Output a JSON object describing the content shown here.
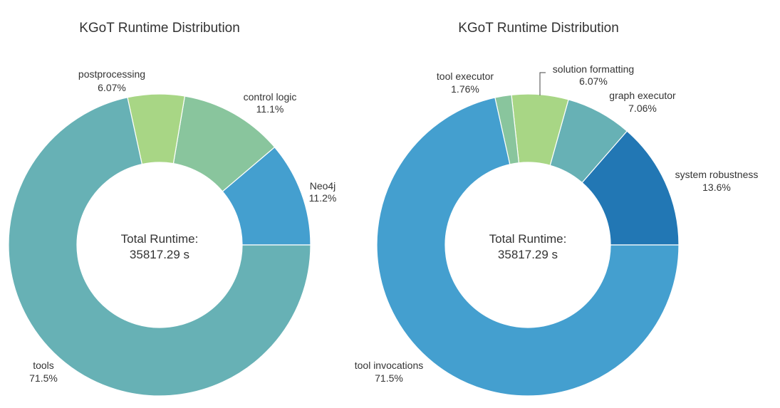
{
  "chart_data": [
    {
      "type": "pie",
      "title": "KGoT Runtime Distribution",
      "center_text": [
        "Total Runtime:",
        "35817.29 s"
      ],
      "slices": [
        {
          "label": "Neo4j",
          "percent_label": "11.2%",
          "value": 11.2,
          "color": "#449fcf"
        },
        {
          "label": "control logic",
          "percent_label": "11.1%",
          "value": 11.1,
          "color": "#89c59d"
        },
        {
          "label": "postprocessing",
          "percent_label": "6.07%",
          "value": 6.07,
          "color": "#a8d685"
        },
        {
          "label": "tools",
          "percent_label": "71.5%",
          "value": 71.5,
          "color": "#67b1b5"
        }
      ]
    },
    {
      "type": "pie",
      "title": "KGoT Runtime Distribution",
      "center_text": [
        "Total Runtime:",
        "35817.29 s"
      ],
      "slices": [
        {
          "label": "system robustness",
          "percent_label": "13.6%",
          "value": 13.6,
          "color": "#2277b4"
        },
        {
          "label": "graph executor",
          "percent_label": "7.06%",
          "value": 7.06,
          "color": "#67b1b5"
        },
        {
          "label": "solution formatting",
          "percent_label": "6.07%",
          "value": 6.07,
          "color": "#a8d685"
        },
        {
          "label": "tool executor",
          "percent_label": "1.76%",
          "value": 1.76,
          "color": "#89c59d"
        },
        {
          "label": "tool invocations",
          "percent_label": "71.5%",
          "value": 71.5,
          "color": "#449fcf"
        }
      ]
    }
  ]
}
